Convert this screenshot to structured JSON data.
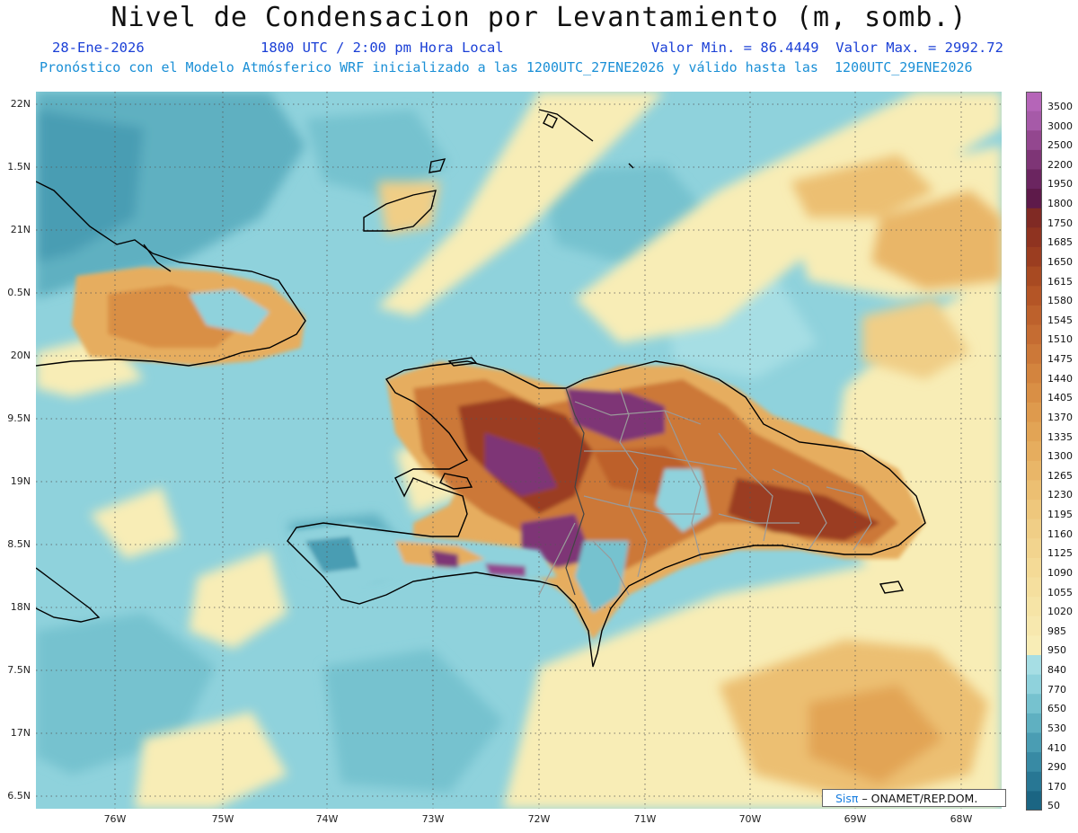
{
  "header": {
    "title": "Nivel de Condensacion por Levantamiento (m, somb.)",
    "date": "28-Ene-2026",
    "time": "1800 UTC / 2:00 pm Hora Local",
    "minmax": "Valor Min. = 86.4449  Valor Max. = 2992.72",
    "model_line": "Pronóstico con el Modelo Atmósferico WRF inicializado a las 1200UTC_27ENE2026 y válido hasta las  1200UTC_29ENE2026"
  },
  "axes": {
    "lat_labels": [
      "22N",
      "1.5N",
      "21N",
      "0.5N",
      "20N",
      "9.5N",
      "19N",
      "8.5N",
      "18N",
      "7.5N",
      "17N",
      "6.5N"
    ],
    "lon_labels": [
      "76W",
      "75W",
      "74W",
      "73W",
      "72W",
      "71W",
      "70W",
      "69W",
      "68W"
    ]
  },
  "legend": {
    "levels": [
      "3500",
      "3000",
      "2500",
      "2200",
      "1950",
      "1800",
      "1750",
      "1685",
      "1650",
      "1615",
      "1580",
      "1545",
      "1510",
      "1475",
      "1440",
      "1405",
      "1370",
      "1335",
      "1300",
      "1265",
      "1230",
      "1195",
      "1160",
      "1125",
      "1090",
      "1055",
      "1020",
      "985",
      "950",
      "840",
      "770",
      "650",
      "530",
      "410",
      "290",
      "170",
      "50"
    ],
    "colors": [
      "#b565b8",
      "#a65aa8",
      "#93478f",
      "#7e3576",
      "#6b2560",
      "#5e1a4a",
      "#802a24",
      "#8f3320",
      "#9b3d20",
      "#a84a22",
      "#b45526",
      "#bd612c",
      "#c56c32",
      "#cc7838",
      "#d3843e",
      "#d98f45",
      "#de9a4d",
      "#e2a455",
      "#e6ad5e",
      "#e9b668",
      "#ecbf72",
      "#eec77c",
      "#f0ce86",
      "#f2d48e",
      "#f4da96",
      "#f5df9e",
      "#f6e4a6",
      "#f7e8ae",
      "#f8edb6",
      "#a6dee4",
      "#8fd2dc",
      "#76c2cf",
      "#5fb0c1",
      "#4a9db3",
      "#388aa4",
      "#287794",
      "#1b6583"
    ]
  },
  "credit": {
    "sis": "Sisπ",
    "org": "– ONAMET/REP.DOM."
  }
}
